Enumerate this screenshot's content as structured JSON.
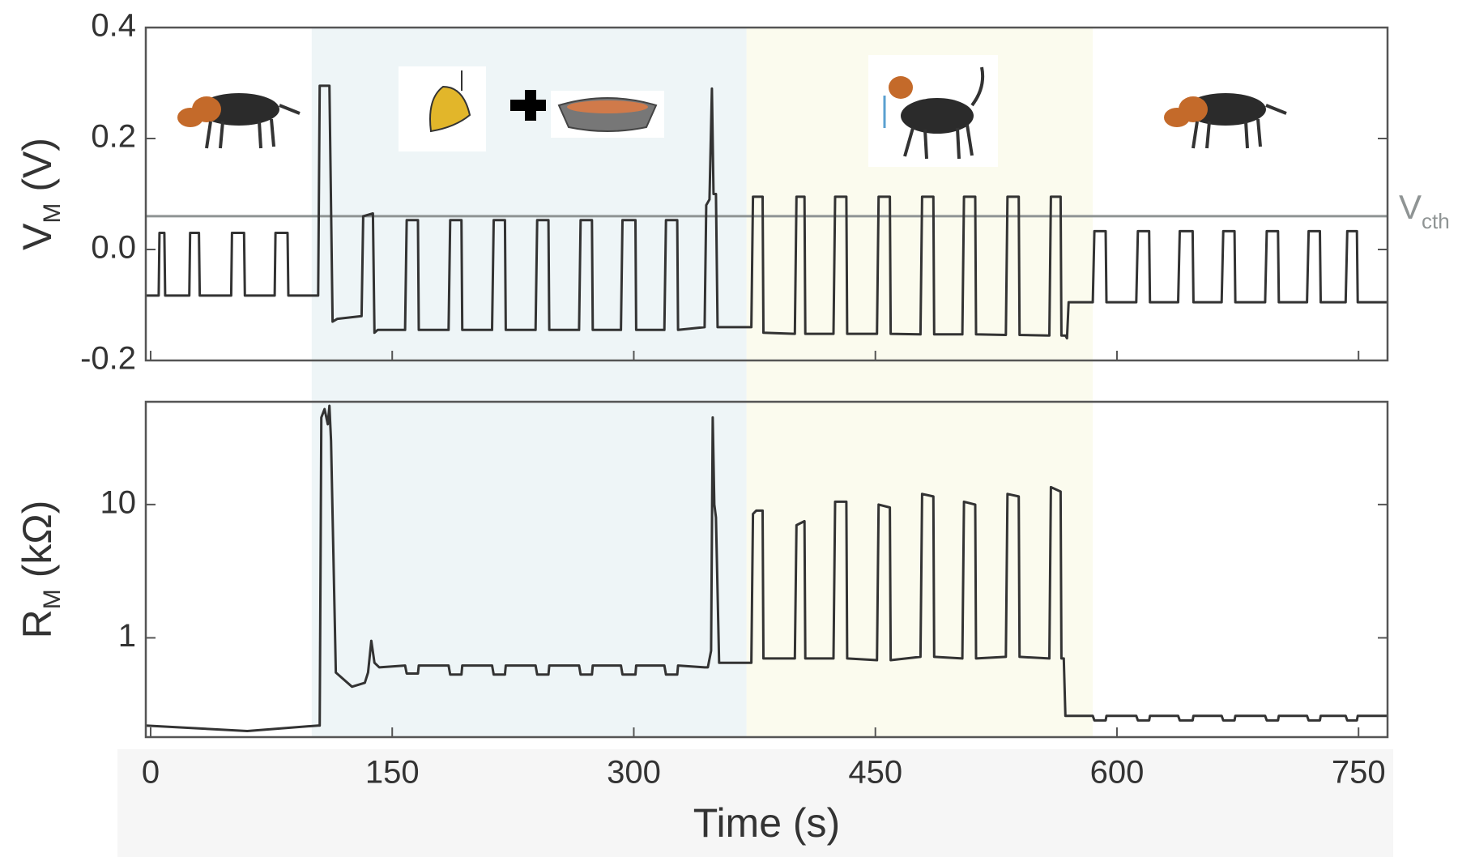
{
  "chart_data": [
    {
      "type": "line",
      "ylabel": "V",
      "ylabel_sub": "M",
      "ylabel_unit": "(V)",
      "xlim": [
        -3,
        768
      ],
      "ylim": [
        -0.2,
        0.4
      ],
      "yticks": [
        -0.2,
        {
          "value": 0,
          "label": "0.0"
        },
        0.2,
        0.4
      ],
      "threshold": {
        "value": 0.06,
        "label": "V",
        "label_sub": "cth",
        "color": "#8f9494"
      },
      "shaded_regions": [
        {
          "x0": 100,
          "x1": 370,
          "color": "#eef5f7"
        },
        {
          "x0": 370,
          "x1": 585,
          "color": "#fbfbee"
        }
      ],
      "x": [
        -3,
        5,
        5.5,
        8.5,
        9,
        24,
        24.5,
        30,
        30.5,
        50,
        50.5,
        58,
        58.5,
        77,
        77.5,
        85,
        85.5,
        104,
        105,
        111,
        113,
        116,
        131,
        132,
        138,
        139,
        141,
        158,
        159,
        166,
        166.5,
        185,
        186,
        193,
        193.5,
        212,
        213,
        220,
        220.5,
        239,
        240,
        247,
        247.5,
        266,
        267,
        274,
        274.5,
        292,
        293,
        301,
        301.5,
        319,
        320,
        327,
        327.5,
        344,
        345,
        347,
        348.5,
        349.5,
        351,
        352,
        353,
        373,
        374,
        380,
        380.5,
        400,
        401,
        406,
        406.5,
        424,
        425,
        432,
        432.5,
        451,
        452,
        459,
        459.5,
        478,
        479,
        486,
        486.5,
        504,
        505,
        512,
        512.5,
        531,
        532,
        539,
        539.5,
        558,
        559,
        565,
        565.5,
        568,
        569,
        570,
        585,
        586,
        593,
        593.5,
        612,
        613,
        620,
        620.5,
        638,
        639,
        647,
        647.5,
        665,
        666,
        673,
        673.5,
        692,
        693,
        700,
        700.5,
        718,
        719,
        726,
        726.5,
        742,
        743,
        749,
        749.5,
        768
      ],
      "series": [
        {
          "color": "#333333",
          "values": [
            -0.083,
            -0.083,
            0.03,
            0.03,
            -0.083,
            -0.083,
            0.03,
            0.03,
            -0.083,
            -0.083,
            0.03,
            0.03,
            -0.083,
            -0.083,
            0.03,
            0.03,
            -0.083,
            -0.083,
            0.295,
            0.295,
            -0.13,
            -0.125,
            -0.12,
            0.06,
            0.065,
            -0.15,
            -0.145,
            -0.145,
            0.053,
            0.053,
            -0.145,
            -0.145,
            0.053,
            0.053,
            -0.145,
            -0.145,
            0.053,
            0.053,
            -0.145,
            -0.145,
            0.053,
            0.053,
            -0.145,
            -0.145,
            0.053,
            0.053,
            -0.145,
            -0.145,
            0.053,
            0.053,
            -0.145,
            -0.145,
            0.053,
            0.053,
            -0.145,
            -0.14,
            0.08,
            0.09,
            0.29,
            0.1,
            0.1,
            -0.14,
            -0.14,
            -0.14,
            0.095,
            0.095,
            -0.15,
            -0.152,
            0.095,
            0.095,
            -0.152,
            -0.152,
            0.095,
            0.095,
            -0.152,
            -0.152,
            0.095,
            0.095,
            -0.152,
            -0.153,
            0.095,
            0.095,
            -0.153,
            -0.153,
            0.095,
            0.095,
            -0.153,
            -0.154,
            0.095,
            0.095,
            -0.154,
            -0.155,
            0.095,
            0.095,
            -0.155,
            -0.155,
            -0.16,
            -0.095,
            -0.095,
            0.033,
            0.033,
            -0.095,
            -0.095,
            0.033,
            0.033,
            -0.095,
            -0.095,
            0.033,
            0.033,
            -0.095,
            -0.095,
            0.033,
            0.033,
            -0.095,
            -0.095,
            0.033,
            0.033,
            -0.095,
            -0.095,
            0.033,
            0.033,
            -0.095,
            -0.095,
            0.033,
            0.033,
            -0.095,
            -0.095
          ]
        }
      ]
    },
    {
      "type": "line",
      "log_y": true,
      "ylabel": "R",
      "ylabel_sub": "M",
      "ylabel_unit": "(kΩ)",
      "xlabel": "Time (s)",
      "xlim": [
        -3,
        768
      ],
      "ylim": [
        0.18,
        59
      ],
      "xticks": [
        0,
        150,
        300,
        450,
        600,
        750
      ],
      "yticks": [
        1,
        10
      ],
      "x": [
        -3,
        60,
        104,
        105,
        106,
        108,
        110,
        111,
        112,
        115,
        125,
        133,
        135,
        137,
        139,
        142,
        158,
        159,
        166,
        166.5,
        185,
        186,
        193,
        193.5,
        212,
        213,
        220,
        220.5,
        239,
        240,
        247,
        247.5,
        266,
        267,
        274,
        274.5,
        292,
        293,
        301,
        301.5,
        319,
        320,
        327,
        327.5,
        344,
        346,
        348,
        349,
        350,
        351,
        353,
        355,
        373,
        374,
        376,
        380,
        380.5,
        400,
        401,
        406,
        406.5,
        424,
        425,
        432,
        432.5,
        451,
        452,
        459,
        459.5,
        478,
        479,
        486,
        486.5,
        504,
        505,
        512,
        512.5,
        531,
        532,
        539,
        539.5,
        558,
        559,
        565,
        565.5,
        567,
        568,
        585,
        586,
        593,
        593.5,
        612,
        613,
        620,
        620.5,
        638,
        639,
        647,
        647.5,
        665,
        666,
        673,
        673.5,
        692,
        693,
        700,
        700.5,
        718,
        719,
        726,
        726.5,
        742,
        743,
        749,
        749.5,
        768
      ],
      "series": [
        {
          "color": "#333333",
          "values": [
            0.22,
            0.2,
            0.22,
            0.22,
            45,
            52,
            40,
            55,
            30,
            0.55,
            0.43,
            0.46,
            0.55,
            0.95,
            0.65,
            0.6,
            0.62,
            0.54,
            0.54,
            0.62,
            0.62,
            0.53,
            0.53,
            0.62,
            0.62,
            0.53,
            0.53,
            0.62,
            0.62,
            0.53,
            0.53,
            0.62,
            0.62,
            0.53,
            0.53,
            0.62,
            0.62,
            0.53,
            0.53,
            0.62,
            0.62,
            0.53,
            0.53,
            0.62,
            0.6,
            0.6,
            0.8,
            45,
            10,
            8,
            0.65,
            0.65,
            0.65,
            8.5,
            9,
            9,
            0.7,
            0.7,
            7,
            7.5,
            0.7,
            0.7,
            10.5,
            10.5,
            0.7,
            0.68,
            10,
            9.5,
            0.68,
            0.72,
            12,
            11.5,
            0.72,
            0.7,
            10.5,
            10,
            0.7,
            0.72,
            12,
            11.5,
            0.72,
            0.7,
            13.5,
            12.5,
            0.7,
            0.7,
            0.26,
            0.26,
            0.24,
            0.24,
            0.26,
            0.26,
            0.24,
            0.24,
            0.26,
            0.26,
            0.24,
            0.24,
            0.26,
            0.26,
            0.24,
            0.24,
            0.26,
            0.26,
            0.24,
            0.24,
            0.26,
            0.26,
            0.24,
            0.24,
            0.26,
            0.26,
            0.24,
            0.24,
            0.26,
            0.26
          ]
        }
      ]
    }
  ]
}
